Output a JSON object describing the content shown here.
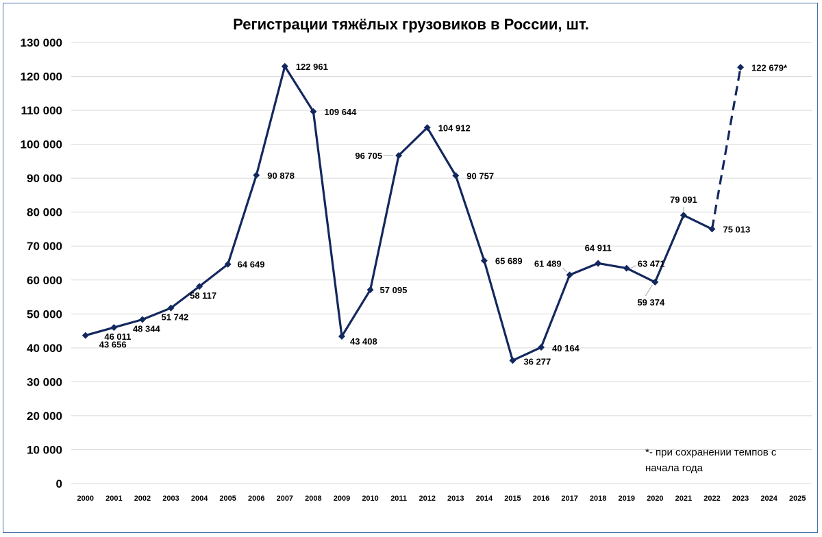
{
  "chart_data": {
    "type": "line",
    "title": "Регистрации тяжёлых грузовиков в России, шт.",
    "xlabel": "",
    "ylabel": "",
    "ylim": [
      0,
      130000
    ],
    "y_ticks": [
      {
        "value": 0,
        "label": "0"
      },
      {
        "value": 10000,
        "label": "10 000"
      },
      {
        "value": 20000,
        "label": "20 000"
      },
      {
        "value": 30000,
        "label": "30 000"
      },
      {
        "value": 40000,
        "label": "40 000"
      },
      {
        "value": 50000,
        "label": "50 000"
      },
      {
        "value": 60000,
        "label": "60 000"
      },
      {
        "value": 70000,
        "label": "70 000"
      },
      {
        "value": 80000,
        "label": "80 000"
      },
      {
        "value": 90000,
        "label": "90 000"
      },
      {
        "value": 100000,
        "label": "100 000"
      },
      {
        "value": 110000,
        "label": "110 000"
      },
      {
        "value": 120000,
        "label": "120 000"
      },
      {
        "value": 130000,
        "label": "130 000"
      }
    ],
    "categories": [
      "2000",
      "2001",
      "2002",
      "2003",
      "2004",
      "2005",
      "2006",
      "2007",
      "2008",
      "2009",
      "2010",
      "2011",
      "2012",
      "2013",
      "2014",
      "2015",
      "2016",
      "2017",
      "2018",
      "2019",
      "2020",
      "2021",
      "2022",
      "2023",
      "2024",
      "2025"
    ],
    "series": [
      {
        "name": "",
        "points": [
          {
            "x": "2000",
            "y": 43656,
            "label": "43 656"
          },
          {
            "x": "2001",
            "y": 46011,
            "label": "46 011"
          },
          {
            "x": "2002",
            "y": 48344,
            "label": "48 344"
          },
          {
            "x": "2003",
            "y": 51742,
            "label": "51 742"
          },
          {
            "x": "2004",
            "y": 58117,
            "label": "58 117"
          },
          {
            "x": "2005",
            "y": 64649,
            "label": "64 649"
          },
          {
            "x": "2006",
            "y": 90878,
            "label": "90 878"
          },
          {
            "x": "2007",
            "y": 122961,
            "label": "122 961"
          },
          {
            "x": "2008",
            "y": 109644,
            "label": "109 644"
          },
          {
            "x": "2009",
            "y": 43408,
            "label": "43 408"
          },
          {
            "x": "2010",
            "y": 57095,
            "label": "57 095"
          },
          {
            "x": "2011",
            "y": 96705,
            "label": "96 705"
          },
          {
            "x": "2012",
            "y": 104912,
            "label": "104 912"
          },
          {
            "x": "2013",
            "y": 90757,
            "label": "90 757"
          },
          {
            "x": "2014",
            "y": 65689,
            "label": "65 689"
          },
          {
            "x": "2015",
            "y": 36277,
            "label": "36 277"
          },
          {
            "x": "2016",
            "y": 40164,
            "label": "40 164"
          },
          {
            "x": "2017",
            "y": 61489,
            "label": "61 489"
          },
          {
            "x": "2018",
            "y": 64911,
            "label": "64 911"
          },
          {
            "x": "2019",
            "y": 63471,
            "label": "63 471"
          },
          {
            "x": "2020",
            "y": 59374,
            "label": "59 374"
          },
          {
            "x": "2021",
            "y": 79091,
            "label": "79 091"
          },
          {
            "x": "2022",
            "y": 75013,
            "label": "75 013"
          }
        ]
      },
      {
        "name": "",
        "style": "dashed",
        "points": [
          {
            "x": "2022",
            "y": 75013,
            "label": ""
          },
          {
            "x": "2023",
            "y": 122679,
            "label": "122 679*"
          }
        ]
      }
    ],
    "annotations": [
      {
        "text_line1": "*- при сохранении темпов с",
        "text_line2": "начала года"
      }
    ],
    "grid": true,
    "line_color": "#13285e",
    "grid_color": "#d9d9d9"
  }
}
